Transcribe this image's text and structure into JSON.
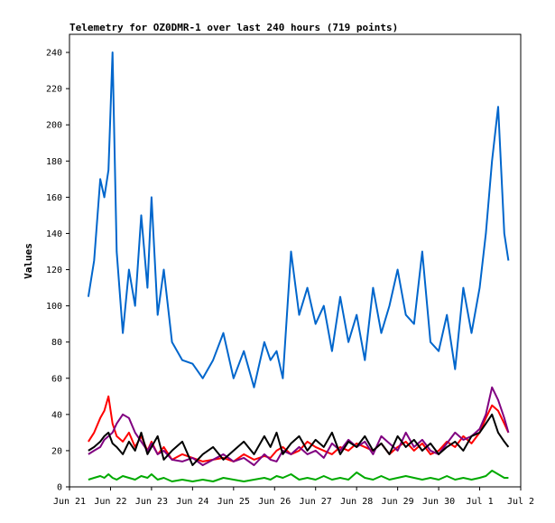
{
  "chart_data": {
    "type": "line",
    "title": "Telemetry for OZ0DMR-1 over last 240 hours (719 points)",
    "xlabel": "",
    "ylabel": "Values",
    "ylim": [
      0,
      250
    ],
    "xlim": [
      0,
      11
    ],
    "y_ticks": [
      0,
      20,
      40,
      60,
      80,
      100,
      120,
      140,
      160,
      180,
      200,
      220,
      240
    ],
    "x_ticks": [
      {
        "value": 0,
        "label": "Jun 21"
      },
      {
        "value": 1,
        "label": "Jun 22"
      },
      {
        "value": 2,
        "label": "Jun 23"
      },
      {
        "value": 3,
        "label": "Jun 24"
      },
      {
        "value": 4,
        "label": "Jun 25"
      },
      {
        "value": 5,
        "label": "Jun 26"
      },
      {
        "value": 6,
        "label": "Jun 27"
      },
      {
        "value": 7,
        "label": "Jun 28"
      },
      {
        "value": 8,
        "label": "Jun 29"
      },
      {
        "value": 9,
        "label": "Jun 30"
      },
      {
        "value": 10,
        "label": "Jul 1"
      },
      {
        "value": 11,
        "label": "Jul 2"
      }
    ],
    "grid": false,
    "x": [
      0.46,
      0.6,
      0.75,
      0.85,
      0.95,
      1.05,
      1.15,
      1.3,
      1.45,
      1.6,
      1.75,
      1.9,
      2.0,
      2.15,
      2.3,
      2.5,
      2.75,
      3.0,
      3.25,
      3.5,
      3.75,
      4.0,
      4.25,
      4.5,
      4.75,
      4.9,
      5.05,
      5.2,
      5.4,
      5.6,
      5.8,
      6.0,
      6.2,
      6.4,
      6.6,
      6.8,
      7.0,
      7.2,
      7.4,
      7.6,
      7.8,
      8.0,
      8.2,
      8.4,
      8.6,
      8.8,
      9.0,
      9.2,
      9.4,
      9.6,
      9.8,
      10.0,
      10.15,
      10.3,
      10.45,
      10.6,
      10.7
    ],
    "series": [
      {
        "color": "#0066cc",
        "values": [
          105,
          125,
          170,
          160,
          175,
          240,
          130,
          85,
          120,
          100,
          150,
          110,
          160,
          95,
          120,
          80,
          70,
          68,
          60,
          70,
          85,
          60,
          75,
          55,
          80,
          70,
          75,
          60,
          130,
          95,
          110,
          90,
          100,
          75,
          105,
          80,
          95,
          70,
          110,
          85,
          100,
          120,
          95,
          90,
          130,
          80,
          75,
          95,
          65,
          110,
          85,
          110,
          140,
          180,
          210,
          140,
          125
        ]
      },
      {
        "color": "#ff0000",
        "values": [
          25,
          30,
          38,
          42,
          50,
          35,
          28,
          25,
          30,
          22,
          28,
          20,
          25,
          18,
          22,
          15,
          18,
          16,
          14,
          15,
          16,
          14,
          18,
          15,
          17,
          16,
          20,
          22,
          18,
          20,
          25,
          22,
          20,
          18,
          22,
          20,
          24,
          22,
          20,
          24,
          18,
          22,
          25,
          20,
          24,
          18,
          20,
          25,
          22,
          28,
          24,
          30,
          38,
          45,
          42,
          35,
          30
        ]
      },
      {
        "color": "#800080",
        "values": [
          18,
          20,
          22,
          26,
          28,
          30,
          35,
          40,
          38,
          30,
          25,
          20,
          24,
          18,
          20,
          15,
          14,
          16,
          12,
          15,
          18,
          14,
          16,
          12,
          18,
          15,
          14,
          20,
          18,
          22,
          18,
          20,
          16,
          24,
          20,
          26,
          22,
          25,
          18,
          28,
          24,
          20,
          30,
          22,
          26,
          20,
          18,
          24,
          30,
          26,
          28,
          32,
          40,
          55,
          48,
          38,
          30
        ]
      },
      {
        "color": "#000000",
        "values": [
          20,
          22,
          25,
          28,
          30,
          24,
          22,
          18,
          25,
          20,
          30,
          18,
          22,
          28,
          15,
          20,
          25,
          12,
          18,
          22,
          15,
          20,
          25,
          18,
          28,
          22,
          30,
          18,
          24,
          28,
          20,
          26,
          22,
          30,
          18,
          25,
          22,
          28,
          20,
          24,
          18,
          28,
          22,
          26,
          20,
          24,
          18,
          22,
          25,
          20,
          28,
          30,
          35,
          40,
          30,
          25,
          22
        ]
      },
      {
        "color": "#00aa00",
        "values": [
          4,
          5,
          6,
          5,
          7,
          5,
          4,
          6,
          5,
          4,
          6,
          5,
          7,
          4,
          5,
          3,
          4,
          3,
          4,
          3,
          5,
          4,
          3,
          4,
          5,
          4,
          6,
          5,
          7,
          4,
          5,
          4,
          6,
          4,
          5,
          4,
          8,
          5,
          4,
          6,
          4,
          5,
          6,
          5,
          4,
          5,
          4,
          6,
          4,
          5,
          4,
          5,
          6,
          9,
          7,
          5,
          5
        ]
      }
    ]
  }
}
